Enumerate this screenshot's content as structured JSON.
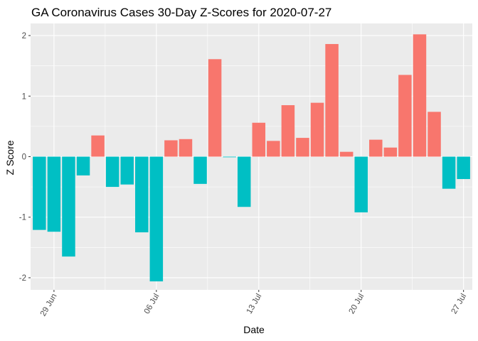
{
  "chart_data": {
    "type": "bar",
    "title": "GA Coronavirus Cases 30-Day Z-Scores for 2020-07-27",
    "xlabel": "Date",
    "ylabel": "Z Score",
    "ylim": [
      -2.2,
      2.2
    ],
    "yticks": [
      {
        "value": -2,
        "label": "-2"
      },
      {
        "value": -1,
        "label": "-1"
      },
      {
        "value": 0,
        "label": "0"
      },
      {
        "value": 1,
        "label": "1"
      },
      {
        "value": 2,
        "label": "2"
      }
    ],
    "xticks": [
      {
        "index": 1,
        "label": "29 Jun"
      },
      {
        "index": 8,
        "label": "06 Jul"
      },
      {
        "index": 15,
        "label": "13 Jul"
      },
      {
        "index": 22,
        "label": "20 Jul"
      },
      {
        "index": 29,
        "label": "27 Jul"
      }
    ],
    "dates": [
      "2020-06-28",
      "2020-06-29",
      "2020-06-30",
      "2020-07-01",
      "2020-07-02",
      "2020-07-03",
      "2020-07-04",
      "2020-07-05",
      "2020-07-06",
      "2020-07-07",
      "2020-07-08",
      "2020-07-09",
      "2020-07-10",
      "2020-07-11",
      "2020-07-12",
      "2020-07-13",
      "2020-07-14",
      "2020-07-15",
      "2020-07-16",
      "2020-07-17",
      "2020-07-18",
      "2020-07-19",
      "2020-07-20",
      "2020-07-21",
      "2020-07-22",
      "2020-07-23",
      "2020-07-24",
      "2020-07-25",
      "2020-07-26",
      "2020-07-27"
    ],
    "values": [
      -1.21,
      -1.24,
      -1.65,
      -0.31,
      0.35,
      -0.5,
      -0.46,
      -1.25,
      -2.06,
      0.27,
      0.29,
      -0.45,
      1.61,
      -0.01,
      -0.83,
      0.56,
      0.26,
      0.85,
      0.31,
      0.89,
      1.86,
      0.08,
      -0.92,
      0.28,
      0.15,
      1.35,
      2.02,
      0.74,
      -0.53,
      -0.37
    ],
    "colors": {
      "positive": "#F8766D",
      "negative": "#00BFC4"
    },
    "panel_background": "#EBEBEB",
    "grid_color": "#FFFFFF",
    "legend": "none"
  }
}
